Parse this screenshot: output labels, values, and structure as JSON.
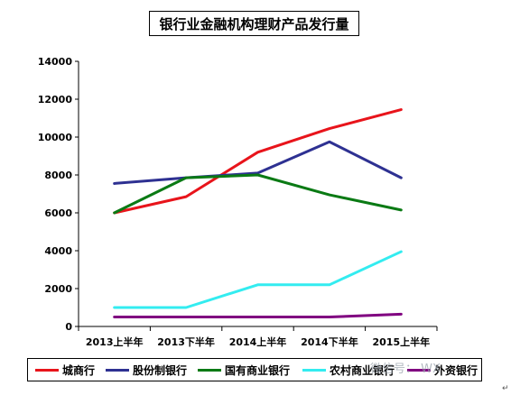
{
  "chart_data": {
    "type": "line",
    "title": "银行业金融机构理财产品发行量",
    "categories": [
      "2013上半年",
      "2013下半年",
      "2014上半年",
      "2014下半年",
      "2015上半年"
    ],
    "ylim": [
      0,
      14000
    ],
    "yticks": [
      "14000",
      "12000",
      "10000",
      "8000",
      "6000",
      "4000",
      "2000",
      "0"
    ],
    "grid": false,
    "legend_position": "bottom",
    "series": [
      {
        "name": "城商行",
        "color": "#e8141b",
        "values": [
          6000,
          6850,
          9200,
          10450,
          11450
        ]
      },
      {
        "name": "股份制银行",
        "color": "#2e3192",
        "values": [
          7550,
          7850,
          8100,
          9750,
          7850
        ]
      },
      {
        "name": "国有商业银行",
        "color": "#0a7a14",
        "values": [
          6000,
          7850,
          8000,
          6950,
          6150
        ]
      },
      {
        "name": "农村商业银行",
        "color": "#33ecf0",
        "values": [
          1000,
          1000,
          2200,
          2200,
          3950
        ]
      },
      {
        "name": "外资银行",
        "color": "#800080",
        "values": [
          500,
          500,
          500,
          500,
          650
        ]
      }
    ]
  },
  "overlay": {
    "watermark": "微信号：   WX",
    "return_mark": "↵"
  }
}
